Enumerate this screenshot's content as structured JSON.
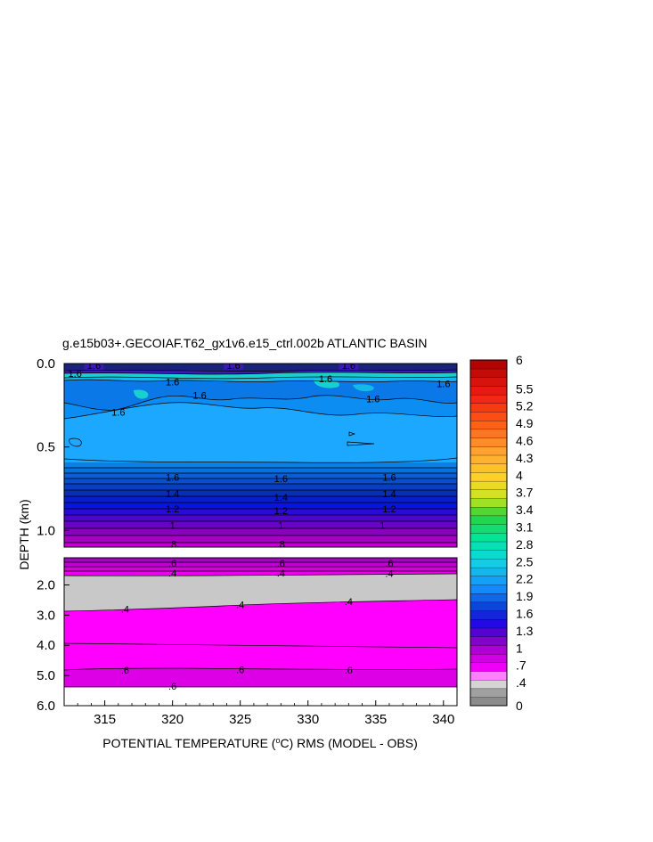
{
  "chart_data": {
    "type": "heatmap",
    "title": "g.e15b03+.GECOIAF.T62_gx1v6.e15_ctrl.002b ATLANTIC BASIN",
    "xlabel_pre": "POTENTIAL TEMPERATURE (",
    "xlabel_deg": "o",
    "xlabel_post": "C) RMS (MODEL - OBS)",
    "ylabel": "DEPTH (km)",
    "x_ticks": [
      "315",
      "320",
      "325",
      "330",
      "335",
      "340"
    ],
    "x_tick_values": [
      315,
      320,
      325,
      330,
      335,
      340
    ],
    "xlim": [
      312,
      341
    ],
    "upper_panel": {
      "ylim": [
        0.0,
        1.1
      ],
      "y_ticks": [
        "0.0",
        "0.5",
        "1.0"
      ],
      "y_tick_values": [
        0.0,
        0.5,
        1.0
      ]
    },
    "lower_panel": {
      "ylim": [
        1.1,
        6.0
      ],
      "y_ticks": [
        "2.0",
        "3.0",
        "4.0",
        "5.0",
        "6.0"
      ],
      "y_tick_values": [
        2.0,
        3.0,
        4.0,
        5.0,
        6.0
      ]
    },
    "colorbar_labels": [
      "6",
      "5.5",
      "5.2",
      "4.9",
      "4.6",
      "4.3",
      "4",
      "3.7",
      "3.4",
      "3.1",
      "2.8",
      "2.5",
      "2.2",
      "1.9",
      "1.6",
      "1.3",
      "1",
      ".7",
      ".4",
      "0"
    ],
    "colorbar_values": [
      6,
      5.5,
      5.2,
      4.9,
      4.6,
      4.3,
      4,
      3.7,
      3.4,
      3.1,
      2.8,
      2.5,
      2.2,
      1.9,
      1.6,
      1.3,
      1,
      0.7,
      0.4,
      0
    ],
    "contour_labels": {
      "upper": [
        {
          "text": "1.6",
          "x": 314.2,
          "y": 0.01
        },
        {
          "text": "1.6",
          "x": 312.8,
          "y": 0.06
        },
        {
          "text": "1.6",
          "x": 324.5,
          "y": 0.01
        },
        {
          "text": "1.6",
          "x": 333.0,
          "y": 0.01
        },
        {
          "text": "1.6",
          "x": 320.0,
          "y": 0.11
        },
        {
          "text": "1.6",
          "x": 322.0,
          "y": 0.19
        },
        {
          "text": "1.6",
          "x": 316.0,
          "y": 0.29
        },
        {
          "text": "1.6",
          "x": 331.3,
          "y": 0.09
        },
        {
          "text": "1.6",
          "x": 334.8,
          "y": 0.21
        },
        {
          "text": "1.6",
          "x": 340.0,
          "y": 0.12
        },
        {
          "text": "1.6",
          "x": 320.0,
          "y": 0.68
        },
        {
          "text": "1.6",
          "x": 328.0,
          "y": 0.69
        },
        {
          "text": "1.6",
          "x": 336.0,
          "y": 0.68
        },
        {
          "text": "1.4",
          "x": 320.0,
          "y": 0.78
        },
        {
          "text": "1.4",
          "x": 328.0,
          "y": 0.8
        },
        {
          "text": "1.4",
          "x": 336.0,
          "y": 0.78
        },
        {
          "text": "1.2",
          "x": 320.0,
          "y": 0.87
        },
        {
          "text": "1.2",
          "x": 328.0,
          "y": 0.88
        },
        {
          "text": "1.2",
          "x": 336.0,
          "y": 0.87
        },
        {
          "text": "1",
          "x": 320.0,
          "y": 0.97
        },
        {
          "text": "1",
          "x": 328.0,
          "y": 0.97
        },
        {
          "text": "1",
          "x": 335.5,
          "y": 0.97
        },
        {
          "text": ".8",
          "x": 320.0,
          "y": 1.08
        },
        {
          "text": ".8",
          "x": 328.0,
          "y": 1.08
        }
      ],
      "lower": [
        {
          "text": ".6",
          "x": 320.0,
          "y": 1.28
        },
        {
          "text": ".6",
          "x": 328.0,
          "y": 1.28
        },
        {
          "text": ".6",
          "x": 336.0,
          "y": 1.28
        },
        {
          "text": ".4",
          "x": 320.0,
          "y": 1.6
        },
        {
          "text": ".4",
          "x": 328.0,
          "y": 1.6
        },
        {
          "text": ".4",
          "x": 336.0,
          "y": 1.62
        },
        {
          "text": ".4",
          "x": 316.5,
          "y": 2.8
        },
        {
          "text": ".4",
          "x": 325.0,
          "y": 2.65
        },
        {
          "text": ".4",
          "x": 333.0,
          "y": 2.55
        },
        {
          "text": ".6",
          "x": 316.5,
          "y": 4.82
        },
        {
          "text": ".6",
          "x": 325.0,
          "y": 4.8
        },
        {
          "text": ".6",
          "x": 333.0,
          "y": 4.82
        },
        {
          "text": ".6",
          "x": 320.0,
          "y": 5.35
        }
      ]
    }
  }
}
